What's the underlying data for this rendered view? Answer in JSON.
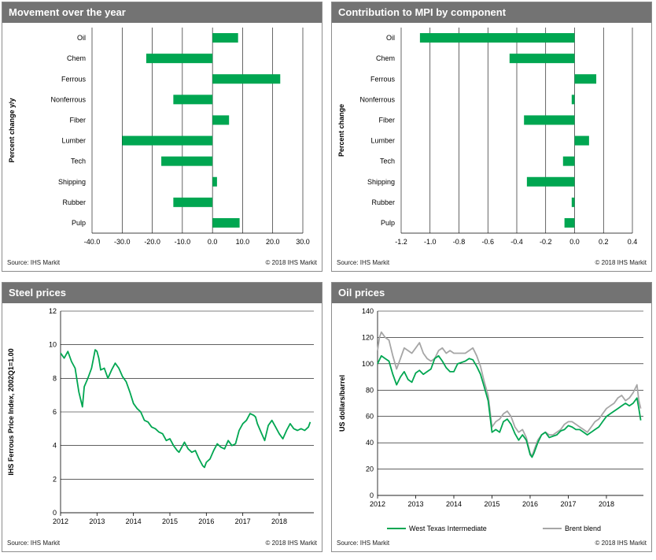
{
  "colors": {
    "bar": "#00a651",
    "header_bg": "#737373",
    "wti": "#00a651",
    "brent": "#a6a6a6",
    "grid": "#000000"
  },
  "panels": {
    "p1": {
      "title": "Movement  over the year",
      "source": "Source:  IHS Markit",
      "copyright": "© 2018  IHS Markit"
    },
    "p2": {
      "title": "Contribution  to MPI by component",
      "source": "Source:  IHS Markit",
      "copyright": "© 2018  IHS Markit"
    },
    "p3": {
      "title": "Steel prices",
      "source": "Source:  IHS Markit",
      "copyright": "© 2018  IHS Markit"
    },
    "p4": {
      "title": "Oil  prices",
      "source": "Source:  IHS Markit",
      "copyright": "© 2018  IHS Markit"
    }
  },
  "chart_data": [
    {
      "type": "bar",
      "orientation": "horizontal",
      "ylabel": "Percent change y/y",
      "categories": [
        "Oil",
        "Chem",
        "Ferrous",
        "Nonferrous",
        "Fiber",
        "Lumber",
        "Tech",
        "Shipping",
        "Rubber",
        "Pulp"
      ],
      "values": [
        8.5,
        -22,
        22.5,
        -13,
        5.5,
        -30,
        -17,
        1.5,
        -13,
        9
      ],
      "xlim": [
        -40,
        30
      ],
      "xticks": [
        -40,
        -30,
        -20,
        -10,
        0,
        10,
        20,
        30
      ],
      "xtick_labels": [
        "-40.0",
        "-30.0",
        "-20.0",
        "-10.0",
        "0.0",
        "10.0",
        "20.0",
        "30.0"
      ],
      "grid": "vertical"
    },
    {
      "type": "bar",
      "orientation": "horizontal",
      "ylabel": "Percent change",
      "categories": [
        "Oil",
        "Chem",
        "Ferrous",
        "Nonferrous",
        "Fiber",
        "Lumber",
        "Tech",
        "Shipping",
        "Rubber",
        "Pulp"
      ],
      "values": [
        -1.07,
        -0.45,
        0.15,
        -0.02,
        -0.35,
        0.1,
        -0.08,
        -0.33,
        -0.02,
        -0.07
      ],
      "xlim": [
        -1.2,
        0.4
      ],
      "xticks": [
        -1.2,
        -1.0,
        -0.8,
        -0.6,
        -0.4,
        -0.2,
        0.0,
        0.2,
        0.4
      ],
      "xtick_labels": [
        "-1.2",
        "-1.0",
        "-0.8",
        "-0.6",
        "-0.4",
        "-0.2",
        "0.0",
        "0.2",
        "0.4"
      ],
      "grid": "vertical"
    },
    {
      "type": "line",
      "ylabel": "IHS Ferrous Price Index, 2002Q1=1.00",
      "ylim": [
        0,
        12
      ],
      "yticks": [
        0,
        2,
        4,
        6,
        8,
        10,
        12
      ],
      "xlim": [
        2012,
        2018.95
      ],
      "xticks": [
        2012,
        2013,
        2014,
        2015,
        2016,
        2017,
        2018
      ],
      "grid": "horizontal",
      "series": [
        {
          "color": "#00a651",
          "x": [
            2012.0,
            2012.1,
            2012.2,
            2012.3,
            2012.4,
            2012.5,
            2012.6,
            2012.65,
            2012.75,
            2012.85,
            2012.95,
            2013.0,
            2013.05,
            2013.1,
            2013.2,
            2013.3,
            2013.4,
            2013.5,
            2013.6,
            2013.7,
            2013.8,
            2013.9,
            2014.0,
            2014.1,
            2014.2,
            2014.3,
            2014.4,
            2014.5,
            2014.6,
            2014.7,
            2014.8,
            2014.9,
            2015.0,
            2015.1,
            2015.2,
            2015.25,
            2015.3,
            2015.4,
            2015.5,
            2015.6,
            2015.7,
            2015.8,
            2015.9,
            2015.95,
            2016.0,
            2016.1,
            2016.2,
            2016.3,
            2016.4,
            2016.5,
            2016.6,
            2016.7,
            2016.8,
            2016.9,
            2017.0,
            2017.1,
            2017.2,
            2017.3,
            2017.35,
            2017.4,
            2017.5,
            2017.6,
            2017.7,
            2017.8,
            2017.9,
            2018.0,
            2018.1,
            2018.2,
            2018.3,
            2018.4,
            2018.5,
            2018.6,
            2018.7,
            2018.8,
            2018.85
          ],
          "y": [
            9.5,
            9.2,
            9.6,
            9.0,
            8.6,
            7.2,
            6.3,
            7.5,
            8.0,
            8.6,
            9.7,
            9.6,
            9.2,
            8.5,
            8.6,
            8.0,
            8.5,
            8.9,
            8.6,
            8.1,
            7.8,
            7.2,
            6.5,
            6.2,
            6.0,
            5.5,
            5.4,
            5.1,
            5.0,
            4.8,
            4.7,
            4.3,
            4.4,
            4.0,
            3.7,
            3.6,
            3.8,
            4.2,
            3.8,
            3.6,
            3.7,
            3.2,
            2.8,
            2.7,
            3.0,
            3.2,
            3.7,
            4.1,
            3.9,
            3.8,
            4.3,
            4.0,
            4.1,
            4.9,
            5.3,
            5.5,
            5.9,
            5.8,
            5.7,
            5.3,
            4.8,
            4.3,
            5.2,
            5.5,
            5.1,
            4.7,
            4.4,
            4.9,
            5.3,
            5.0,
            4.9,
            5.0,
            4.9,
            5.1,
            5.4
          ]
        }
      ]
    },
    {
      "type": "line",
      "ylabel": "US dollars/barrel",
      "ylim": [
        0,
        140
      ],
      "yticks": [
        0,
        20,
        40,
        60,
        80,
        100,
        120,
        140
      ],
      "xlim": [
        2012,
        2018.97
      ],
      "xticks": [
        2012,
        2013,
        2014,
        2015,
        2016,
        2017,
        2018
      ],
      "grid": "horizontal",
      "legend_position": "bottom",
      "series": [
        {
          "name": "West Texas Intermediate",
          "color": "#00a651",
          "x": [
            2012.0,
            2012.1,
            2012.2,
            2012.3,
            2012.4,
            2012.5,
            2012.6,
            2012.7,
            2012.8,
            2012.9,
            2013.0,
            2013.1,
            2013.2,
            2013.3,
            2013.4,
            2013.5,
            2013.6,
            2013.7,
            2013.8,
            2013.9,
            2014.0,
            2014.1,
            2014.2,
            2014.3,
            2014.4,
            2014.5,
            2014.6,
            2014.7,
            2014.8,
            2014.9,
            2015.0,
            2015.1,
            2015.2,
            2015.3,
            2015.4,
            2015.5,
            2015.6,
            2015.7,
            2015.8,
            2015.9,
            2016.0,
            2016.05,
            2016.1,
            2016.2,
            2016.3,
            2016.4,
            2016.5,
            2016.6,
            2016.7,
            2016.8,
            2016.9,
            2017.0,
            2017.1,
            2017.2,
            2017.3,
            2017.4,
            2017.5,
            2017.6,
            2017.7,
            2017.8,
            2017.9,
            2018.0,
            2018.1,
            2018.2,
            2018.3,
            2018.4,
            2018.5,
            2018.6,
            2018.7,
            2018.8,
            2018.85,
            2018.9
          ],
          "y": [
            100,
            106,
            104,
            102,
            92,
            84,
            90,
            94,
            88,
            86,
            93,
            95,
            92,
            94,
            96,
            104,
            106,
            102,
            97,
            94,
            94,
            100,
            101,
            102,
            104,
            103,
            98,
            92,
            82,
            72,
            48,
            50,
            48,
            56,
            58,
            54,
            47,
            42,
            46,
            42,
            31,
            29,
            32,
            40,
            46,
            48,
            44,
            45,
            46,
            49,
            50,
            53,
            52,
            50,
            50,
            48,
            46,
            48,
            50,
            52,
            56,
            60,
            62,
            64,
            66,
            68,
            70,
            68,
            70,
            74,
            66,
            57
          ]
        },
        {
          "name": "Brent blend",
          "color": "#a6a6a6",
          "x": [
            2012.0,
            2012.05,
            2012.1,
            2012.2,
            2012.3,
            2012.4,
            2012.5,
            2012.6,
            2012.7,
            2012.8,
            2012.9,
            2013.0,
            2013.1,
            2013.2,
            2013.3,
            2013.4,
            2013.5,
            2013.6,
            2013.7,
            2013.8,
            2013.9,
            2014.0,
            2014.1,
            2014.2,
            2014.3,
            2014.4,
            2014.5,
            2014.6,
            2014.7,
            2014.8,
            2014.9,
            2015.0,
            2015.1,
            2015.2,
            2015.3,
            2015.4,
            2015.5,
            2015.6,
            2015.7,
            2015.8,
            2015.9,
            2016.0,
            2016.05,
            2016.1,
            2016.2,
            2016.3,
            2016.4,
            2016.5,
            2016.6,
            2016.7,
            2016.8,
            2016.9,
            2017.0,
            2017.1,
            2017.2,
            2017.3,
            2017.4,
            2017.5,
            2017.6,
            2017.7,
            2017.8,
            2017.9,
            2018.0,
            2018.1,
            2018.2,
            2018.3,
            2018.4,
            2018.5,
            2018.6,
            2018.7,
            2018.8,
            2018.85,
            2018.9
          ],
          "y": [
            110,
            120,
            124,
            120,
            118,
            106,
            96,
            104,
            112,
            110,
            108,
            112,
            116,
            108,
            104,
            102,
            104,
            110,
            112,
            108,
            110,
            108,
            108,
            108,
            108,
            110,
            112,
            106,
            98,
            86,
            76,
            52,
            56,
            58,
            62,
            64,
            60,
            52,
            48,
            50,
            44,
            32,
            30,
            34,
            42,
            46,
            48,
            46,
            46,
            48,
            50,
            54,
            56,
            56,
            54,
            52,
            50,
            48,
            52,
            56,
            58,
            62,
            66,
            68,
            70,
            74,
            76,
            72,
            74,
            78,
            84,
            72,
            66
          ]
        }
      ]
    }
  ]
}
